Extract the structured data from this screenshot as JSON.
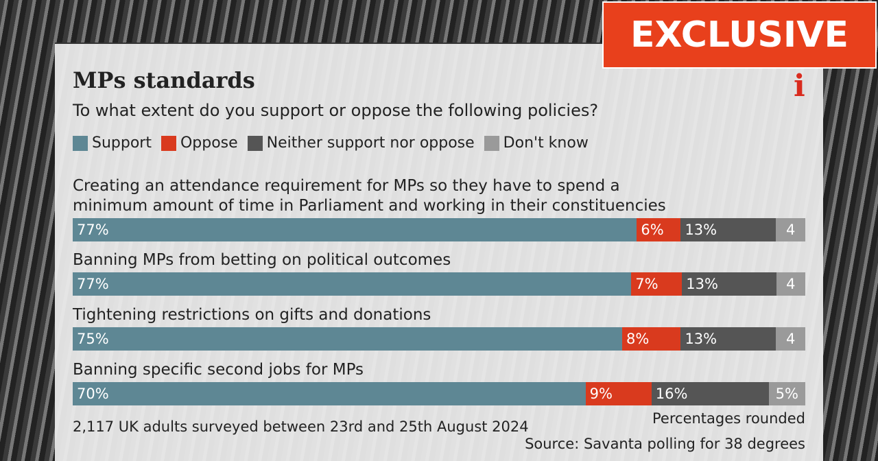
{
  "badge": "EXCLUSIVE",
  "logo": "i",
  "chart_data": {
    "type": "stacked-bar-horizontal",
    "title": "MPs standards",
    "subtitle": "To what extent do you support or oppose the following policies?",
    "categories": [
      "Creating an attendance requirement for MPs so they have to spend a minimum amount of time in Parliament and working in their constituencies",
      "Banning MPs from betting on political outcomes",
      "Tightening restrictions on gifts and donations",
      "Banning specific second jobs for MPs"
    ],
    "series": [
      {
        "name": "Support",
        "color": "#5e8794",
        "values": [
          77,
          77,
          75,
          70
        ],
        "value_labels": [
          "77%",
          "77%",
          "75%",
          "70%"
        ]
      },
      {
        "name": "Oppose",
        "color": "#d93a1e",
        "values": [
          6,
          7,
          8,
          9
        ],
        "value_labels": [
          "6%",
          "7%",
          "8%",
          "9%"
        ]
      },
      {
        "name": "Neither support nor oppose",
        "color": "#555555",
        "values": [
          13,
          13,
          13,
          16
        ],
        "value_labels": [
          "13%",
          "13%",
          "13%",
          "16%"
        ]
      },
      {
        "name": "Don't know",
        "color": "#9a9a9a",
        "values": [
          4,
          4,
          4,
          5
        ],
        "value_labels": [
          "4",
          "4",
          "4",
          "5%"
        ]
      }
    ],
    "note": "Percentages rounded",
    "footnote": "2,117 UK adults surveyed between 23rd and 25th August 2024",
    "source": "Source: Savanta polling for 38 degrees"
  }
}
